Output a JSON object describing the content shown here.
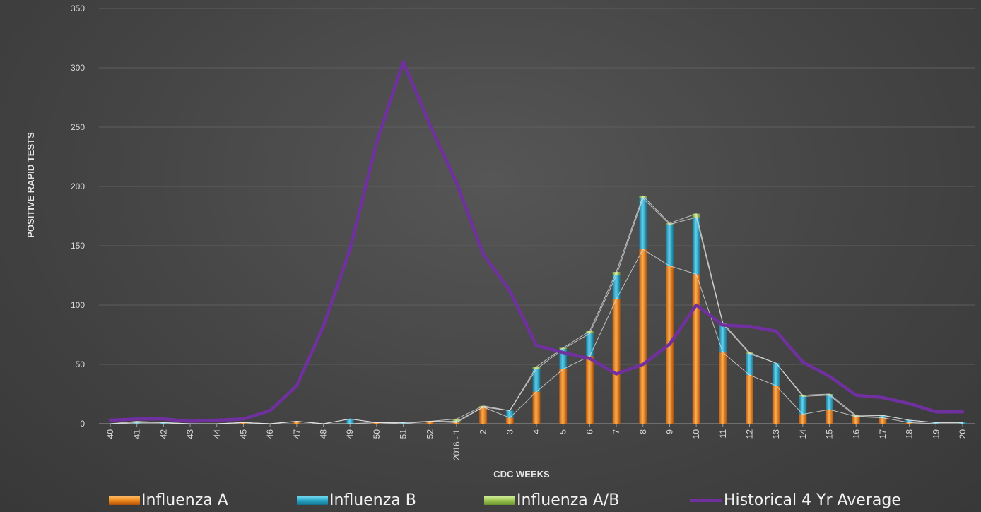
{
  "chart_data": {
    "type": "bar",
    "stacked": true,
    "xlabel": "CDC WEEKS",
    "ylabel": "POSITIVE RAPID TESTS",
    "ylim": [
      0,
      350
    ],
    "yticks": [
      0,
      50,
      100,
      150,
      200,
      250,
      300,
      350
    ],
    "grid": true,
    "legend_position": "bottom",
    "categories": [
      "40",
      "41",
      "42",
      "43",
      "44",
      "45",
      "46",
      "47",
      "48",
      "49",
      "50",
      "51",
      "52",
      "2016 - 1",
      "2",
      "3",
      "4",
      "5",
      "6",
      "7",
      "8",
      "9",
      "10",
      "11",
      "12",
      "13",
      "14",
      "15",
      "16",
      "17",
      "18",
      "19",
      "20"
    ],
    "series": [
      {
        "name": "Influenza A",
        "kind": "bar",
        "color": "#f08a1c",
        "values": [
          0,
          0,
          0,
          0,
          0,
          1,
          0,
          2,
          0,
          0,
          1,
          0,
          2,
          1,
          14,
          5,
          27,
          46,
          57,
          105,
          147,
          133,
          126,
          60,
          41,
          32,
          8,
          12,
          6,
          5,
          1,
          0,
          0
        ]
      },
      {
        "name": "Influenza B",
        "kind": "bar",
        "color": "#2aa8c8",
        "values": [
          0,
          1,
          1,
          0,
          0,
          0,
          0,
          0,
          0,
          4,
          0,
          1,
          0,
          1,
          0,
          6,
          19,
          17,
          19,
          20,
          43,
          35,
          48,
          24,
          18,
          19,
          15,
          12,
          0,
          2,
          2,
          1,
          1
        ]
      },
      {
        "name": "Influenza A/B",
        "kind": "bar",
        "color": "#9cc852",
        "values": [
          0,
          1,
          0,
          0,
          0,
          0,
          0,
          0,
          0,
          0,
          0,
          0,
          0,
          2,
          1,
          0,
          2,
          1,
          2,
          3,
          2,
          1,
          3,
          1,
          1,
          0,
          1,
          1,
          1,
          0,
          0,
          0,
          0
        ]
      },
      {
        "name": "Historical 4 Yr Average",
        "kind": "line",
        "color": "#7030a0",
        "values": [
          3,
          4,
          4,
          2,
          3,
          4,
          11,
          32,
          82,
          147,
          237,
          305,
          252,
          203,
          143,
          112,
          66,
          60,
          55,
          42,
          50,
          67,
          100,
          83,
          82,
          78,
          52,
          40,
          24,
          22,
          17,
          10,
          10
        ]
      }
    ]
  }
}
